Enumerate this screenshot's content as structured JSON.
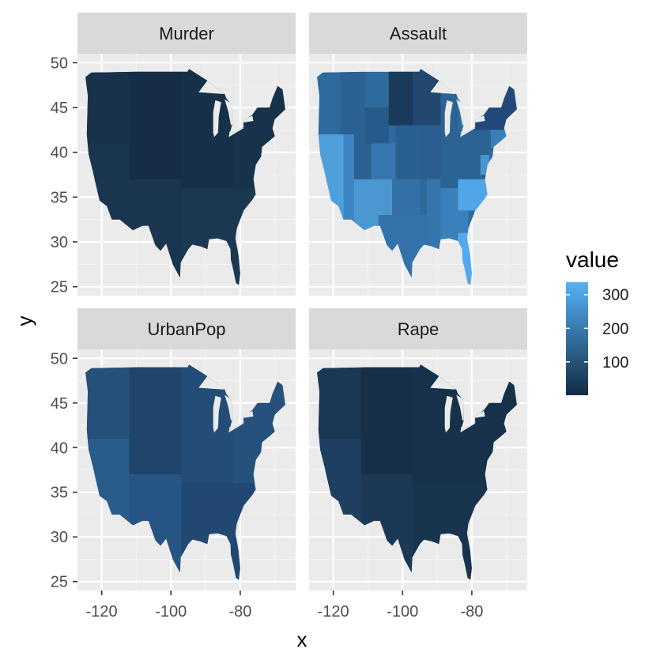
{
  "chart_data": {
    "type": "choropleth-map",
    "facet_variable": "variable",
    "facets": [
      {
        "label": "Murder",
        "value_range": [
          1,
          17
        ],
        "shade": "uniformly very dark (low values)"
      },
      {
        "label": "Assault",
        "value_range": [
          45,
          337
        ],
        "shade": "widest variation; highest in North Carolina, Florida, Maryland, Arizona, New Mexico, California"
      },
      {
        "label": "UrbanPop",
        "value_range": [
          32,
          91
        ],
        "shade": "moderately dark, roughly uniform"
      },
      {
        "label": "Rape",
        "value_range": [
          7,
          46
        ],
        "shade": "very dark (low values)"
      }
    ],
    "xlabel": "x",
    "ylabel": "y",
    "x_ticks": [
      -120,
      -100,
      -80
    ],
    "y_ticks": [
      25,
      30,
      35,
      40,
      45,
      50
    ],
    "xlim": [
      -127,
      -64
    ],
    "ylim": [
      24,
      51
    ],
    "legend": {
      "title": "value",
      "placement": "right",
      "ticks": [
        100,
        200,
        300
      ],
      "range": [
        1,
        337
      ],
      "colors": {
        "low": "#132B43",
        "high": "#56B1F7"
      }
    },
    "panel_background": "#EBEBEB",
    "strip_background": "#D9D9D9",
    "grid": true
  },
  "text": {
    "xlabel": "x",
    "ylabel": "y",
    "legend_title": "value",
    "legend_labels": [
      "300",
      "200",
      "100"
    ],
    "strip_labels": [
      "Murder",
      "Assault",
      "UrbanPop",
      "Rape"
    ],
    "x_tick_labels": [
      "-120",
      "-100",
      "-80"
    ],
    "y_tick_labels": [
      "50",
      "45",
      "40",
      "35",
      "30",
      "25"
    ]
  }
}
